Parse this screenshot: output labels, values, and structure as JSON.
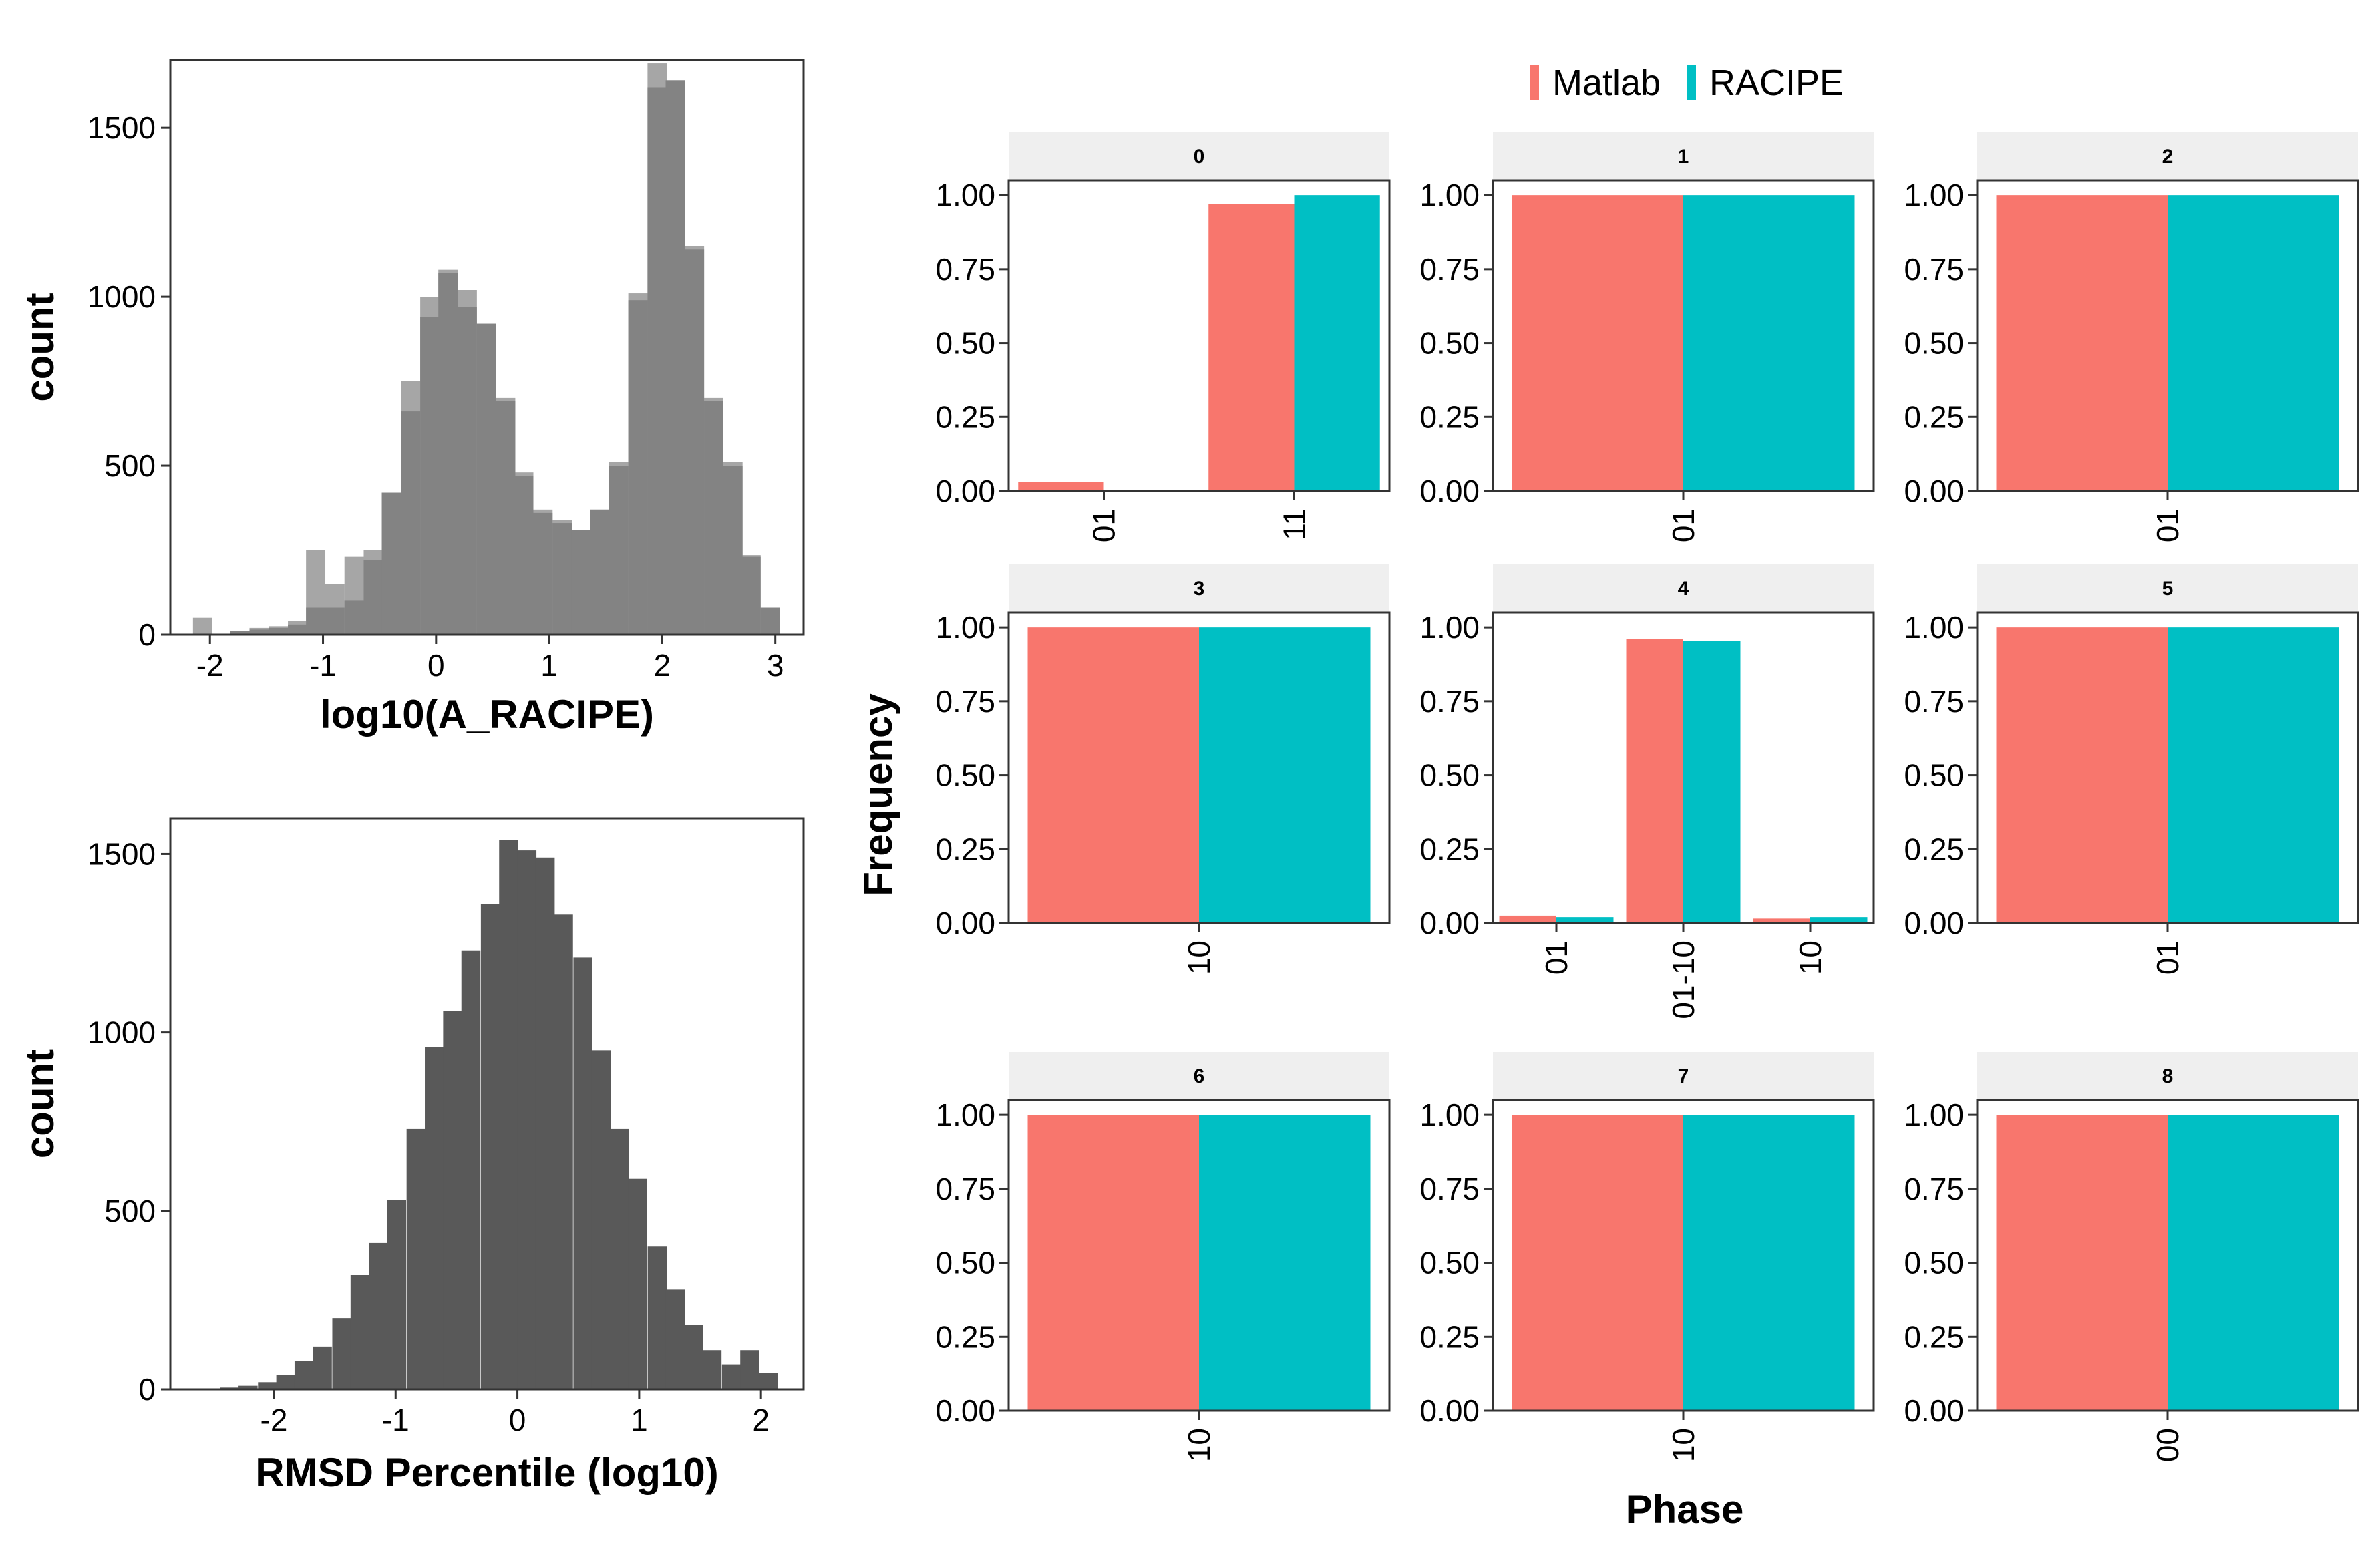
{
  "colors": {
    "matlab": "#F8766D",
    "racipe": "#00BFC4",
    "hist_light": "#A6A6A6",
    "hist_mid": "#838383",
    "hist_dark": "#595959",
    "strip_bg": "#EFEFEF"
  },
  "chart_data": [
    {
      "id": "hist_a",
      "type": "bar",
      "subtype": "histogram-overlay",
      "xlabel": "log10(A_RACIPE)",
      "ylabel": "count",
      "xlim": [
        -2.35,
        3.25
      ],
      "ylim": [
        0,
        1700
      ],
      "xticks": [
        -2,
        -1,
        0,
        1,
        2,
        3
      ],
      "xtick_labels": [
        "-2",
        "-1",
        "0",
        "1",
        "2",
        "3"
      ],
      "yticks": [
        0,
        500,
        1000,
        1500
      ],
      "ytick_labels": [
        "0",
        "500",
        "1000",
        "1500"
      ],
      "bin_width": 0.167,
      "grid": false,
      "series": [
        {
          "key": "light",
          "bin_starts": [
            -2.15,
            -1.98,
            -1.82,
            -1.65,
            -1.48,
            -1.31,
            -1.15,
            -0.98,
            -0.81,
            -0.64,
            -0.48,
            -0.31,
            -0.14,
            0.02,
            0.19,
            0.36,
            0.53,
            0.69,
            0.86,
            1.03,
            1.2,
            1.36,
            1.53,
            1.7,
            1.87,
            2.03,
            2.2,
            2.37,
            2.54,
            2.7,
            2.87
          ],
          "values": [
            50,
            0,
            0,
            20,
            25,
            40,
            250,
            150,
            230,
            250,
            420,
            750,
            1000,
            1080,
            1020,
            920,
            700,
            480,
            370,
            340,
            310,
            370,
            510,
            1010,
            1690,
            1640,
            1150,
            700,
            510,
            235,
            80
          ]
        },
        {
          "key": "mid",
          "bin_starts": [
            -1.98,
            -1.82,
            -1.65,
            -1.48,
            -1.31,
            -1.15,
            -0.98,
            -0.81,
            -0.64,
            -0.48,
            -0.31,
            -0.14,
            0.02,
            0.19,
            0.36,
            0.53,
            0.69,
            0.86,
            1.03,
            1.2,
            1.36,
            1.53,
            1.7,
            1.87,
            2.03,
            2.2,
            2.37,
            2.54,
            2.7,
            2.87
          ],
          "values": [
            0,
            10,
            15,
            20,
            30,
            80,
            80,
            100,
            220,
            420,
            660,
            940,
            1070,
            970,
            920,
            690,
            470,
            360,
            330,
            310,
            370,
            500,
            990,
            1620,
            1640,
            1140,
            690,
            500,
            230,
            80
          ]
        }
      ]
    },
    {
      "id": "hist_rmsd",
      "type": "bar",
      "subtype": "histogram",
      "xlabel": "RMSD Percentile (log10)",
      "ylabel": "count",
      "xlim": [
        -2.85,
        2.35
      ],
      "ylim": [
        0,
        1600
      ],
      "xticks": [
        -2,
        -1,
        0,
        1,
        2
      ],
      "xtick_labels": [
        "-2",
        "-1",
        "0",
        "1",
        "2"
      ],
      "yticks": [
        0,
        500,
        1000,
        1500
      ],
      "ytick_labels": [
        "0",
        "500",
        "1000",
        "1500"
      ],
      "bin_width": 0.153,
      "grid": false,
      "bin_starts": [
        -2.44,
        -2.29,
        -2.13,
        -1.98,
        -1.83,
        -1.68,
        -1.52,
        -1.37,
        -1.22,
        -1.07,
        -0.91,
        -0.76,
        -0.61,
        -0.46,
        -0.3,
        -0.15,
        0.0,
        0.15,
        0.3,
        0.46,
        0.61,
        0.76,
        0.91,
        1.07,
        1.22,
        1.37,
        1.52,
        1.68,
        1.83,
        1.98
      ],
      "values": [
        5,
        10,
        20,
        40,
        80,
        120,
        200,
        320,
        410,
        530,
        730,
        960,
        1060,
        1230,
        1360,
        1540,
        1510,
        1490,
        1330,
        1210,
        950,
        730,
        590,
        400,
        280,
        180,
        110,
        70,
        110,
        45
      ]
    },
    {
      "id": "phase_facets",
      "type": "bar",
      "subtype": "facet-dodged",
      "xlabel": "Phase",
      "ylabel": "Frequency",
      "ylim": [
        0,
        1.05
      ],
      "yticks": [
        0,
        0.25,
        0.5,
        0.75,
        1.0
      ],
      "ytick_labels": [
        "0.00",
        "0.25",
        "0.50",
        "0.75",
        "1.00"
      ],
      "legend": {
        "position": "top",
        "entries": [
          "Matlab",
          "RACIPE"
        ]
      },
      "facets": [
        {
          "label": "0",
          "categories": [
            "01",
            "11"
          ],
          "series": [
            {
              "name": "Matlab",
              "values": [
                0.03,
                0.97
              ]
            },
            {
              "name": "RACIPE",
              "values": [
                0.0,
                1.0
              ]
            }
          ]
        },
        {
          "label": "1",
          "categories": [
            "01"
          ],
          "series": [
            {
              "name": "Matlab",
              "values": [
                1.0
              ]
            },
            {
              "name": "RACIPE",
              "values": [
                1.0
              ]
            }
          ]
        },
        {
          "label": "2",
          "categories": [
            "01"
          ],
          "series": [
            {
              "name": "Matlab",
              "values": [
                1.0
              ]
            },
            {
              "name": "RACIPE",
              "values": [
                1.0
              ]
            }
          ]
        },
        {
          "label": "3",
          "categories": [
            "10"
          ],
          "series": [
            {
              "name": "Matlab",
              "values": [
                1.0
              ]
            },
            {
              "name": "RACIPE",
              "values": [
                1.0
              ]
            }
          ]
        },
        {
          "label": "4",
          "categories": [
            "01",
            "01-10",
            "10"
          ],
          "series": [
            {
              "name": "Matlab",
              "values": [
                0.025,
                0.96,
                0.015
              ]
            },
            {
              "name": "RACIPE",
              "values": [
                0.02,
                0.955,
                0.02
              ]
            }
          ]
        },
        {
          "label": "5",
          "categories": [
            "01"
          ],
          "series": [
            {
              "name": "Matlab",
              "values": [
                1.0
              ]
            },
            {
              "name": "RACIPE",
              "values": [
                1.0
              ]
            }
          ]
        },
        {
          "label": "6",
          "categories": [
            "10"
          ],
          "series": [
            {
              "name": "Matlab",
              "values": [
                1.0
              ]
            },
            {
              "name": "RACIPE",
              "values": [
                1.0
              ]
            }
          ]
        },
        {
          "label": "7",
          "categories": [
            "10"
          ],
          "series": [
            {
              "name": "Matlab",
              "values": [
                1.0
              ]
            },
            {
              "name": "RACIPE",
              "values": [
                1.0
              ]
            }
          ]
        },
        {
          "label": "8",
          "categories": [
            "00"
          ],
          "series": [
            {
              "name": "Matlab",
              "values": [
                1.0
              ]
            },
            {
              "name": "RACIPE",
              "values": [
                1.0
              ]
            }
          ]
        }
      ]
    }
  ]
}
